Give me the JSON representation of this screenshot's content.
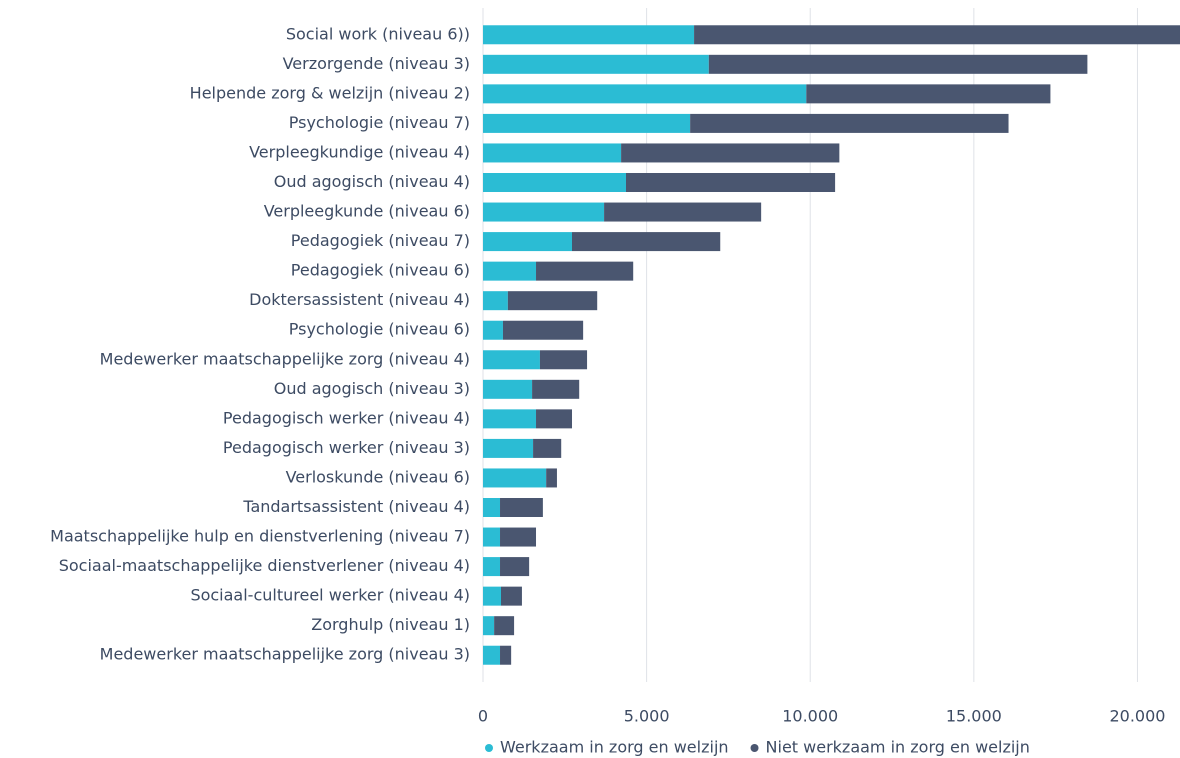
{
  "chart_data": {
    "type": "stacked-barh",
    "categories": [
      "Social work (niveau 6))",
      "Verzorgende (niveau 3)",
      "Helpende zorg & welzijn (niveau 2)",
      "Psychologie (niveau 7)",
      "Verpleegkundige (niveau 4)",
      "Oud agogisch (niveau 4)",
      "Verpleegkunde (niveau 6)",
      "Pedagogiek (niveau 7)",
      "Pedagogiek (niveau 6)",
      "Doktersassistent (niveau 4)",
      "Psychologie (niveau 6)",
      "Medewerker maatschappelijke zorg (niveau 4)",
      "Oud agogisch (niveau 3)",
      "Pedagogisch werker (niveau 4)",
      "Pedagogisch werker (niveau 3)",
      "Verloskunde (niveau 6)",
      "Tandartsassistent (niveau 4)",
      "Maatschappelijke hulp en dienstverlening (niveau 7)",
      "Sociaal-maatschappelijke dienstverlener (niveau 4)",
      "Sociaal-cultureel werker (niveau 4)",
      "Zorghulp (niveau 1)",
      "Medewerker maatschappelijke zorg (niveau 3)"
    ],
    "series": [
      {
        "name": "Werkzaam in zorg en welzijn",
        "color": "#2bbcd4",
        "values": [
          6450,
          6900,
          9880,
          6330,
          4220,
          4370,
          3700,
          2720,
          1620,
          760,
          610,
          1740,
          1500,
          1620,
          1530,
          1930,
          520,
          520,
          520,
          550,
          340,
          520
        ]
      },
      {
        "name": "Niet werkzaam in zorg en welzijn",
        "color": "#4a5670",
        "values": [
          14850,
          11570,
          7460,
          9730,
          6670,
          6390,
          4800,
          4530,
          2970,
          2730,
          2450,
          1440,
          1440,
          1100,
          860,
          330,
          1310,
          1100,
          890,
          640,
          610,
          340
        ]
      }
    ],
    "xlim": [
      0,
      21300
    ],
    "xticks": [
      0,
      {
        "value": 5000,
        "label": "5.000"
      },
      {
        "value": 10000,
        "label": "10.000"
      },
      {
        "value": 15000,
        "label": "15.000"
      },
      {
        "value": 20000,
        "label": "20.000"
      }
    ],
    "grid": true,
    "legend": "bottom"
  }
}
